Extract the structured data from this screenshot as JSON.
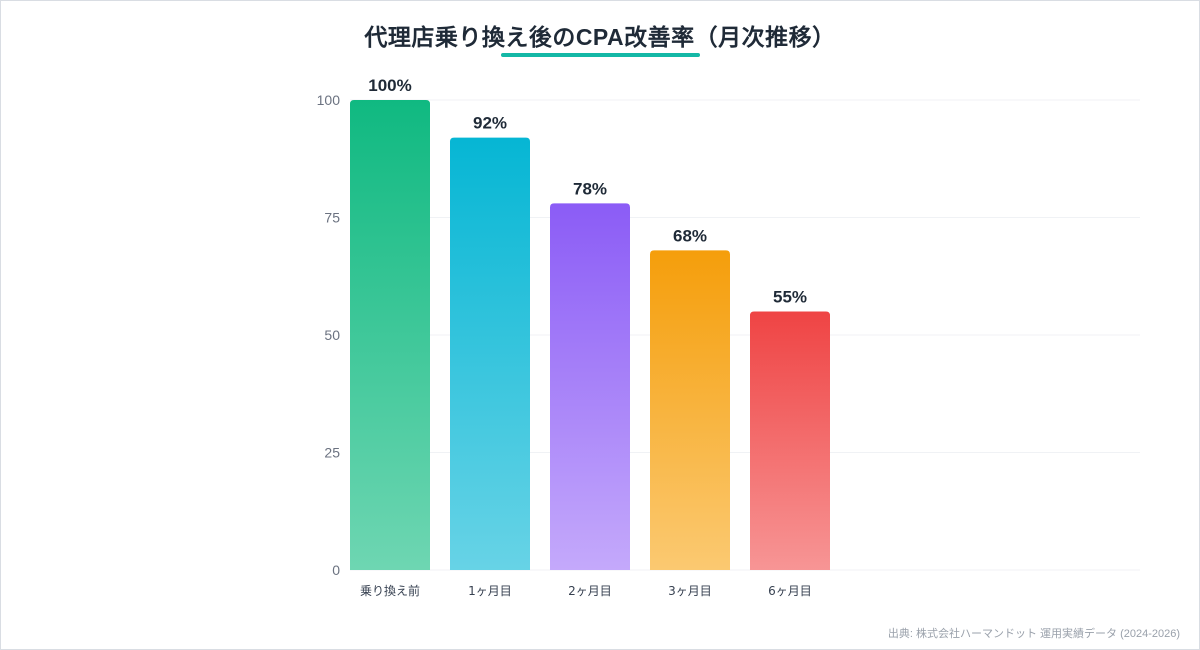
{
  "title": "代理店乗り換え後のCPA改善率（月次推移）",
  "source": "出典: 株式会社ハーマンドット 運用実績データ (2024-2026)",
  "colors": {
    "accent_underline": "#14b8a6",
    "grid": "#f0f2f5",
    "tick_text": "#6b7280",
    "category_text": "#374151",
    "value_label": "#1f2a37"
  },
  "chart_data": {
    "type": "bar",
    "categories": [
      "乗り換え前",
      "1ヶ月目",
      "2ヶ月目",
      "3ヶ月目",
      "6ヶ月目"
    ],
    "values": [
      100,
      92,
      78,
      68,
      55
    ],
    "value_labels": [
      "100%",
      "92%",
      "78%",
      "68%",
      "55%"
    ],
    "bar_colors": [
      [
        "#10b981",
        "#6ed6b2"
      ],
      [
        "#06b6d4",
        "#67d3e6"
      ],
      [
        "#8b5cf6",
        "#c4a9fb"
      ],
      [
        "#f59e0b",
        "#fbc971"
      ],
      [
        "#ef4444",
        "#f79595"
      ]
    ],
    "yticks": [
      0,
      25,
      50,
      75,
      100
    ],
    "ylim": [
      0,
      100
    ],
    "grid": true,
    "legend": "none"
  }
}
